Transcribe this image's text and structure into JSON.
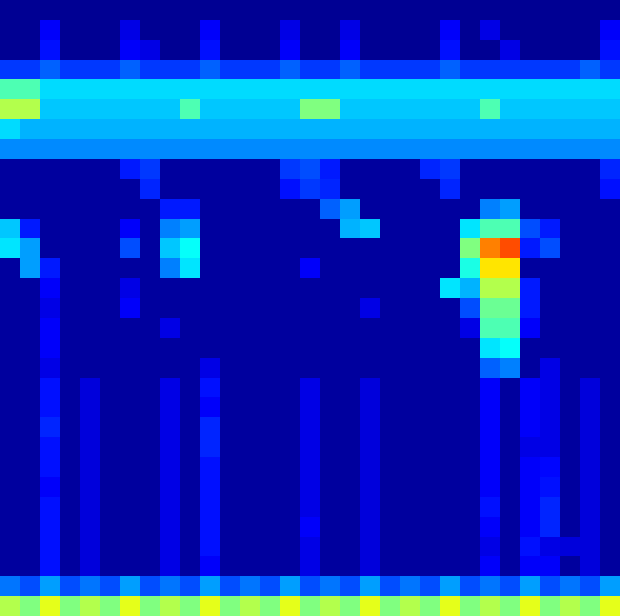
{
  "chart_data": {
    "type": "heatmap",
    "tick_labels": false,
    "zlim": [
      0,
      10
    ],
    "cells": [
      [
        0.2,
        0.2,
        0.2,
        0.2,
        0.2,
        0.2,
        0.2,
        0.2,
        0.2,
        0.2,
        0.2,
        0.2,
        0.2,
        0.2,
        0.2,
        0.2,
        0.2,
        0.2,
        0.2,
        0.2,
        0.2,
        0.2,
        0.2,
        0.2,
        0.2,
        0.2,
        0.2,
        0.2,
        0.2,
        0.2,
        0.2
      ],
      [
        0.2,
        0.2,
        1.2,
        0.2,
        0.2,
        0.2,
        1.0,
        0.2,
        0.2,
        0.2,
        1.2,
        0.2,
        0.2,
        0.2,
        1.0,
        0.2,
        0.2,
        1.0,
        0.2,
        0.2,
        0.2,
        0.2,
        1.2,
        0.2,
        1.0,
        0.2,
        0.2,
        0.2,
        0.2,
        0.2,
        1.2
      ],
      [
        0.2,
        0.2,
        1.4,
        0.2,
        0.2,
        0.2,
        1.2,
        1.0,
        0.2,
        0.2,
        1.4,
        0.2,
        0.2,
        0.2,
        1.2,
        0.2,
        0.2,
        1.2,
        0.2,
        0.2,
        0.2,
        0.2,
        1.4,
        0.2,
        0.2,
        1.0,
        0.2,
        0.2,
        0.2,
        0.2,
        1.4
      ],
      [
        1.8,
        1.8,
        2.2,
        1.8,
        1.8,
        1.8,
        2.2,
        1.8,
        1.8,
        1.8,
        2.2,
        1.8,
        1.8,
        1.8,
        2.2,
        1.8,
        1.8,
        2.2,
        1.8,
        1.8,
        1.8,
        1.8,
        2.2,
        1.8,
        1.8,
        1.8,
        1.8,
        1.8,
        1.8,
        2.2,
        1.8
      ],
      [
        4.5,
        4.5,
        3.4,
        3.4,
        3.4,
        3.4,
        3.4,
        3.4,
        3.4,
        3.4,
        3.4,
        3.4,
        3.4,
        3.4,
        3.4,
        3.4,
        3.4,
        3.4,
        3.4,
        3.4,
        3.4,
        3.4,
        3.4,
        3.4,
        3.4,
        3.4,
        3.4,
        3.4,
        3.4,
        3.4,
        3.4
      ],
      [
        5.5,
        5.5,
        3.2,
        3.2,
        3.2,
        3.2,
        3.2,
        3.2,
        3.2,
        4.5,
        3.2,
        3.2,
        3.2,
        3.2,
        3.2,
        5.0,
        5.0,
        3.2,
        3.2,
        3.2,
        3.2,
        3.2,
        3.2,
        3.2,
        4.5,
        3.2,
        3.2,
        3.2,
        3.2,
        3.2,
        3.2
      ],
      [
        3.4,
        3.0,
        3.0,
        3.0,
        3.0,
        3.0,
        3.0,
        3.0,
        3.0,
        3.0,
        3.0,
        3.0,
        3.0,
        3.0,
        3.0,
        3.0,
        3.0,
        3.0,
        3.0,
        3.0,
        3.0,
        3.0,
        3.0,
        3.0,
        3.0,
        3.0,
        3.0,
        3.0,
        3.0,
        3.0,
        3.0
      ],
      [
        2.6,
        2.6,
        2.6,
        2.6,
        2.6,
        2.6,
        2.6,
        2.6,
        2.6,
        2.6,
        2.6,
        2.6,
        2.6,
        2.6,
        2.6,
        2.6,
        2.6,
        2.6,
        2.6,
        2.6,
        2.6,
        2.6,
        2.6,
        2.6,
        2.6,
        2.6,
        2.6,
        2.6,
        2.6,
        2.6,
        2.6
      ],
      [
        0.3,
        0.3,
        0.3,
        0.3,
        0.3,
        0.3,
        1.5,
        1.8,
        0.3,
        0.3,
        0.3,
        0.3,
        0.3,
        0.3,
        1.8,
        2.0,
        1.5,
        0.3,
        0.3,
        0.3,
        0.3,
        1.6,
        1.8,
        0.3,
        0.3,
        0.3,
        0.3,
        0.3,
        0.3,
        0.3,
        1.6
      ],
      [
        0.3,
        0.3,
        0.3,
        0.3,
        0.3,
        0.3,
        0.3,
        1.6,
        0.3,
        0.3,
        0.3,
        0.3,
        0.3,
        0.3,
        1.4,
        1.8,
        1.6,
        0.3,
        0.3,
        0.3,
        0.3,
        0.3,
        1.6,
        0.3,
        0.3,
        0.3,
        0.3,
        0.3,
        0.3,
        0.3,
        1.4
      ],
      [
        0.3,
        0.3,
        0.3,
        0.3,
        0.3,
        0.3,
        0.3,
        0.3,
        1.5,
        1.5,
        0.3,
        0.3,
        0.3,
        0.3,
        0.3,
        0.3,
        2.2,
        2.8,
        0.3,
        0.3,
        0.3,
        0.3,
        0.3,
        0.3,
        2.5,
        2.8,
        0.3,
        0.3,
        0.3,
        0.3,
        0.3
      ],
      [
        3.2,
        1.5,
        0.3,
        0.3,
        0.3,
        0.3,
        1.2,
        0.3,
        2.5,
        2.8,
        0.3,
        0.3,
        0.3,
        0.3,
        0.3,
        0.3,
        0.3,
        3.0,
        3.2,
        0.3,
        0.3,
        0.3,
        0.3,
        3.5,
        4.5,
        4.5,
        2.0,
        1.5,
        0.3,
        0.3,
        0.3
      ],
      [
        3.5,
        2.8,
        0.3,
        0.3,
        0.3,
        0.3,
        2.0,
        0.3,
        3.2,
        3.8,
        0.3,
        0.3,
        0.3,
        0.3,
        0.3,
        0.3,
        0.3,
        0.3,
        0.3,
        0.3,
        0.3,
        0.3,
        0.3,
        5.0,
        7.5,
        8.0,
        1.5,
        2.0,
        0.3,
        0.3,
        0.3
      ],
      [
        0.3,
        2.8,
        1.5,
        0.3,
        0.3,
        0.3,
        0.3,
        0.3,
        2.5,
        3.5,
        0.3,
        0.3,
        0.3,
        0.3,
        0.3,
        1.2,
        0.3,
        0.3,
        0.3,
        0.3,
        0.3,
        0.3,
        0.3,
        4.0,
        6.5,
        6.5,
        0.3,
        0.3,
        0.3,
        0.3,
        0.3
      ],
      [
        0.3,
        0.3,
        1.2,
        0.3,
        0.3,
        0.3,
        1.0,
        0.3,
        0.3,
        0.3,
        0.3,
        0.3,
        0.3,
        0.3,
        0.3,
        0.3,
        0.3,
        0.3,
        0.3,
        0.3,
        0.3,
        0.3,
        3.5,
        3.0,
        5.5,
        5.5,
        1.5,
        0.3,
        0.3,
        0.3,
        0.3
      ],
      [
        0.3,
        0.3,
        1.0,
        0.3,
        0.3,
        0.3,
        1.2,
        0.3,
        0.3,
        0.3,
        0.3,
        0.3,
        0.3,
        0.3,
        0.3,
        0.3,
        0.3,
        0.3,
        1.0,
        0.3,
        0.3,
        0.3,
        0.3,
        2.0,
        4.8,
        4.8,
        1.5,
        0.3,
        0.3,
        0.3,
        0.3
      ],
      [
        0.3,
        0.3,
        1.2,
        0.3,
        0.3,
        0.3,
        0.3,
        0.3,
        1.0,
        0.3,
        0.3,
        0.3,
        0.3,
        0.3,
        0.3,
        0.3,
        0.3,
        0.3,
        0.3,
        0.3,
        0.3,
        0.3,
        0.3,
        1.0,
        4.5,
        4.5,
        1.2,
        0.3,
        0.3,
        0.3,
        0.3
      ],
      [
        0.3,
        0.3,
        1.2,
        0.3,
        0.3,
        0.3,
        0.3,
        0.3,
        0.3,
        0.3,
        0.3,
        0.3,
        0.3,
        0.3,
        0.3,
        0.3,
        0.3,
        0.3,
        0.3,
        0.3,
        0.3,
        0.3,
        0.3,
        0.3,
        3.5,
        3.8,
        0.3,
        0.3,
        0.3,
        0.3,
        0.3
      ],
      [
        0.3,
        0.3,
        1.0,
        0.3,
        0.3,
        0.3,
        0.3,
        0.3,
        0.3,
        0.3,
        1.0,
        0.3,
        0.3,
        0.3,
        0.3,
        0.3,
        0.3,
        0.3,
        0.3,
        0.3,
        0.3,
        0.3,
        0.3,
        0.3,
        2.2,
        2.5,
        0.3,
        1.0,
        0.3,
        0.3,
        0.3
      ],
      [
        0.3,
        0.3,
        1.4,
        0.3,
        0.9,
        0.3,
        0.3,
        0.3,
        1.0,
        0.3,
        1.4,
        0.3,
        0.3,
        0.3,
        0.3,
        1.0,
        0.3,
        0.3,
        0.9,
        0.3,
        0.3,
        0.3,
        0.3,
        0.3,
        1.2,
        0.3,
        1.2,
        1.0,
        0.3,
        0.9,
        0.3
      ],
      [
        0.3,
        0.3,
        1.4,
        0.3,
        0.9,
        0.3,
        0.3,
        0.3,
        1.0,
        0.3,
        1.2,
        0.3,
        0.3,
        0.3,
        0.3,
        1.0,
        0.3,
        0.3,
        0.9,
        0.3,
        0.3,
        0.3,
        0.3,
        0.3,
        1.2,
        0.3,
        1.2,
        1.0,
        0.3,
        0.9,
        0.3
      ],
      [
        0.3,
        0.3,
        1.6,
        0.3,
        0.9,
        0.3,
        0.3,
        0.3,
        1.0,
        0.3,
        1.6,
        0.3,
        0.3,
        0.3,
        0.3,
        1.0,
        0.3,
        0.3,
        0.9,
        0.3,
        0.3,
        0.3,
        0.3,
        0.3,
        1.2,
        0.3,
        1.2,
        1.0,
        0.3,
        0.9,
        0.3
      ],
      [
        0.3,
        0.3,
        1.4,
        0.3,
        0.9,
        0.3,
        0.3,
        0.3,
        1.0,
        0.3,
        1.6,
        0.3,
        0.3,
        0.3,
        0.3,
        1.0,
        0.3,
        0.3,
        0.9,
        0.3,
        0.3,
        0.3,
        0.3,
        0.3,
        1.2,
        0.3,
        1.0,
        1.0,
        0.3,
        0.9,
        0.3
      ],
      [
        0.3,
        0.3,
        1.4,
        0.3,
        0.9,
        0.3,
        0.3,
        0.3,
        1.0,
        0.3,
        1.4,
        0.3,
        0.3,
        0.3,
        0.3,
        1.0,
        0.3,
        0.3,
        0.9,
        0.3,
        0.3,
        0.3,
        0.3,
        0.3,
        1.2,
        0.3,
        1.2,
        1.3,
        0.3,
        0.9,
        0.3
      ],
      [
        0.3,
        0.3,
        1.2,
        0.3,
        0.9,
        0.3,
        0.3,
        0.3,
        1.0,
        0.3,
        1.4,
        0.3,
        0.3,
        0.3,
        0.3,
        1.0,
        0.3,
        0.3,
        0.9,
        0.3,
        0.3,
        0.3,
        0.3,
        0.3,
        1.2,
        0.3,
        1.2,
        1.4,
        0.3,
        0.9,
        0.3
      ],
      [
        0.3,
        0.3,
        1.4,
        0.3,
        0.9,
        0.3,
        0.3,
        0.3,
        1.0,
        0.3,
        1.4,
        0.3,
        0.3,
        0.3,
        0.3,
        1.0,
        0.3,
        0.3,
        0.9,
        0.3,
        0.3,
        0.3,
        0.3,
        0.3,
        1.4,
        0.3,
        1.2,
        1.6,
        0.3,
        0.9,
        0.3
      ],
      [
        0.3,
        0.3,
        1.4,
        0.3,
        0.9,
        0.3,
        0.3,
        0.3,
        1.0,
        0.3,
        1.4,
        0.3,
        0.3,
        0.3,
        0.3,
        1.2,
        0.3,
        0.3,
        0.9,
        0.3,
        0.3,
        0.3,
        0.3,
        0.3,
        1.2,
        0.3,
        1.2,
        1.6,
        0.3,
        0.9,
        0.3
      ],
      [
        0.3,
        0.3,
        1.4,
        0.3,
        0.9,
        0.3,
        0.3,
        0.3,
        1.0,
        0.3,
        1.4,
        0.3,
        0.3,
        0.3,
        0.3,
        1.0,
        0.3,
        0.3,
        0.9,
        0.3,
        0.3,
        0.3,
        0.3,
        0.3,
        1.0,
        0.3,
        1.4,
        1.0,
        0.9,
        0.9,
        0.3
      ],
      [
        0.3,
        0.3,
        1.4,
        0.3,
        0.9,
        0.3,
        0.3,
        0.3,
        1.0,
        0.3,
        1.2,
        0.3,
        0.3,
        0.3,
        0.3,
        1.0,
        0.3,
        0.3,
        0.9,
        0.3,
        0.3,
        0.3,
        0.3,
        0.3,
        1.2,
        0.3,
        1.2,
        1.2,
        0.3,
        0.9,
        0.3
      ],
      [
        2.4,
        2.0,
        2.8,
        2.0,
        2.4,
        2.0,
        2.8,
        2.0,
        2.4,
        2.0,
        2.8,
        2.0,
        2.4,
        2.0,
        2.8,
        2.0,
        2.4,
        2.0,
        2.8,
        2.0,
        2.4,
        2.0,
        2.8,
        2.0,
        2.4,
        2.0,
        2.8,
        2.0,
        2.4,
        2.0,
        2.8
      ],
      [
        5.5,
        5.0,
        6.0,
        5.0,
        5.5,
        5.0,
        6.0,
        5.0,
        5.5,
        5.0,
        6.0,
        5.0,
        5.5,
        5.0,
        6.0,
        5.0,
        5.5,
        5.0,
        6.0,
        5.0,
        5.5,
        5.0,
        6.0,
        5.0,
        5.5,
        5.0,
        6.0,
        5.0,
        5.5,
        5.0,
        6.0
      ]
    ]
  }
}
